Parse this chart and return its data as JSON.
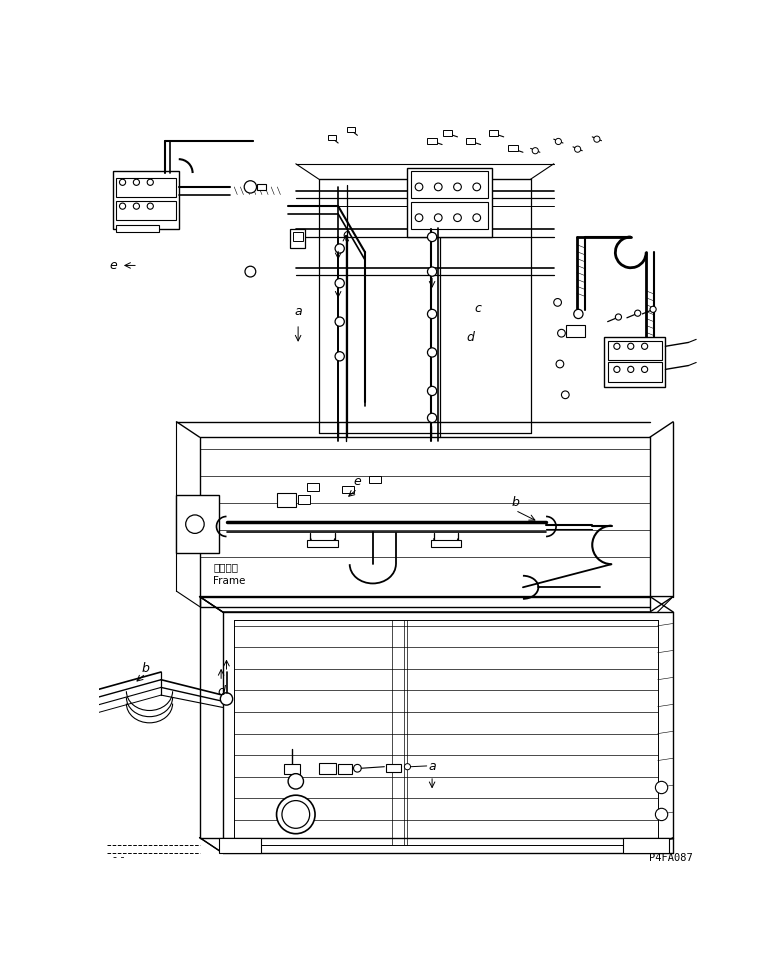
{
  "bg_color": "#ffffff",
  "line_color": "#000000",
  "fig_width": 7.8,
  "fig_height": 9.8,
  "dpi": 100,
  "part_number": "P4FA087",
  "frame_label_jp": "フレーム",
  "frame_label_en": "Frame"
}
